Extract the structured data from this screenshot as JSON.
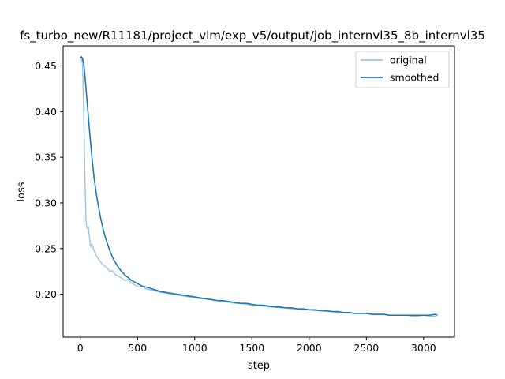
{
  "chart_data": {
    "type": "line",
    "title": "fs_turbo_new/R11181/project_vlm/exp_v5/output/job_internvl35_8b_internvl35",
    "xlabel": "step",
    "ylabel": "loss",
    "xlim": [
      -150,
      3270
    ],
    "ylim": [
      0.153,
      0.472
    ],
    "xticks": [
      0,
      500,
      1000,
      1500,
      2000,
      2500,
      3000
    ],
    "xtick_labels": [
      "0",
      "500",
      "1000",
      "1500",
      "2000",
      "2500",
      "3000"
    ],
    "yticks": [
      0.2,
      0.25,
      0.3,
      0.35,
      0.4,
      0.45
    ],
    "ytick_labels": [
      "0.20",
      "0.25",
      "0.30",
      "0.35",
      "0.40",
      "0.45"
    ],
    "grid": false,
    "legend_position": "upper-right",
    "series": [
      {
        "name": "original",
        "color": "#9ec5e0",
        "x": [
          0,
          10,
          20,
          30,
          40,
          50,
          60,
          70,
          80,
          90,
          100,
          120,
          140,
          160,
          180,
          200,
          220,
          240,
          260,
          280,
          300,
          330,
          360,
          390,
          420,
          450,
          480,
          510,
          540,
          570,
          600,
          650,
          700,
          750,
          800,
          850,
          900,
          950,
          1000,
          1050,
          1100,
          1150,
          1200,
          1250,
          1300,
          1350,
          1400,
          1450,
          1500,
          1550,
          1600,
          1650,
          1700,
          1750,
          1800,
          1850,
          1900,
          1950,
          2000,
          2050,
          2100,
          2150,
          2200,
          2250,
          2300,
          2350,
          2400,
          2450,
          2500,
          2550,
          2600,
          2650,
          2700,
          2750,
          2800,
          2850,
          2900,
          2950,
          3000,
          3050,
          3100,
          3120
        ],
        "y": [
          0.458,
          0.46,
          0.45,
          0.4,
          0.33,
          0.28,
          0.272,
          0.274,
          0.262,
          0.252,
          0.255,
          0.248,
          0.242,
          0.238,
          0.235,
          0.232,
          0.23,
          0.228,
          0.225,
          0.226,
          0.222,
          0.22,
          0.218,
          0.215,
          0.216,
          0.212,
          0.21,
          0.208,
          0.209,
          0.206,
          0.205,
          0.204,
          0.202,
          0.201,
          0.2,
          0.199,
          0.198,
          0.197,
          0.196,
          0.195,
          0.195,
          0.194,
          0.193,
          0.192,
          0.191,
          0.19,
          0.19,
          0.189,
          0.188,
          0.188,
          0.187,
          0.186,
          0.186,
          0.185,
          0.185,
          0.184,
          0.184,
          0.183,
          0.183,
          0.182,
          0.182,
          0.181,
          0.181,
          0.18,
          0.18,
          0.18,
          0.179,
          0.179,
          0.179,
          0.178,
          0.178,
          0.178,
          0.177,
          0.177,
          0.177,
          0.177,
          0.176,
          0.176,
          0.177,
          0.176,
          0.176,
          0.177
        ]
      },
      {
        "name": "smoothed",
        "color": "#1f77b4",
        "x": [
          0,
          10,
          20,
          30,
          40,
          50,
          60,
          70,
          80,
          90,
          100,
          120,
          140,
          160,
          180,
          200,
          220,
          240,
          260,
          280,
          300,
          330,
          360,
          390,
          420,
          450,
          480,
          510,
          540,
          570,
          600,
          650,
          700,
          750,
          800,
          850,
          900,
          950,
          1000,
          1050,
          1100,
          1150,
          1200,
          1250,
          1300,
          1350,
          1400,
          1450,
          1500,
          1550,
          1600,
          1650,
          1700,
          1750,
          1800,
          1850,
          1900,
          1950,
          2000,
          2050,
          2100,
          2150,
          2200,
          2250,
          2300,
          2350,
          2400,
          2450,
          2500,
          2550,
          2600,
          2650,
          2700,
          2750,
          2800,
          2850,
          2900,
          2950,
          3000,
          3050,
          3100,
          3120
        ],
        "y": [
          0.459,
          0.46,
          0.458,
          0.452,
          0.44,
          0.425,
          0.41,
          0.395,
          0.38,
          0.366,
          0.352,
          0.328,
          0.31,
          0.295,
          0.282,
          0.271,
          0.262,
          0.254,
          0.247,
          0.241,
          0.236,
          0.23,
          0.225,
          0.221,
          0.218,
          0.215,
          0.213,
          0.211,
          0.209,
          0.208,
          0.207,
          0.205,
          0.203,
          0.202,
          0.201,
          0.2,
          0.199,
          0.198,
          0.197,
          0.196,
          0.195,
          0.194,
          0.193,
          0.193,
          0.192,
          0.191,
          0.19,
          0.19,
          0.189,
          0.188,
          0.188,
          0.187,
          0.186,
          0.186,
          0.185,
          0.185,
          0.184,
          0.184,
          0.183,
          0.183,
          0.182,
          0.182,
          0.181,
          0.181,
          0.18,
          0.18,
          0.179,
          0.179,
          0.179,
          0.178,
          0.178,
          0.178,
          0.177,
          0.177,
          0.177,
          0.177,
          0.177,
          0.177,
          0.177,
          0.177,
          0.178,
          0.177
        ]
      }
    ]
  }
}
